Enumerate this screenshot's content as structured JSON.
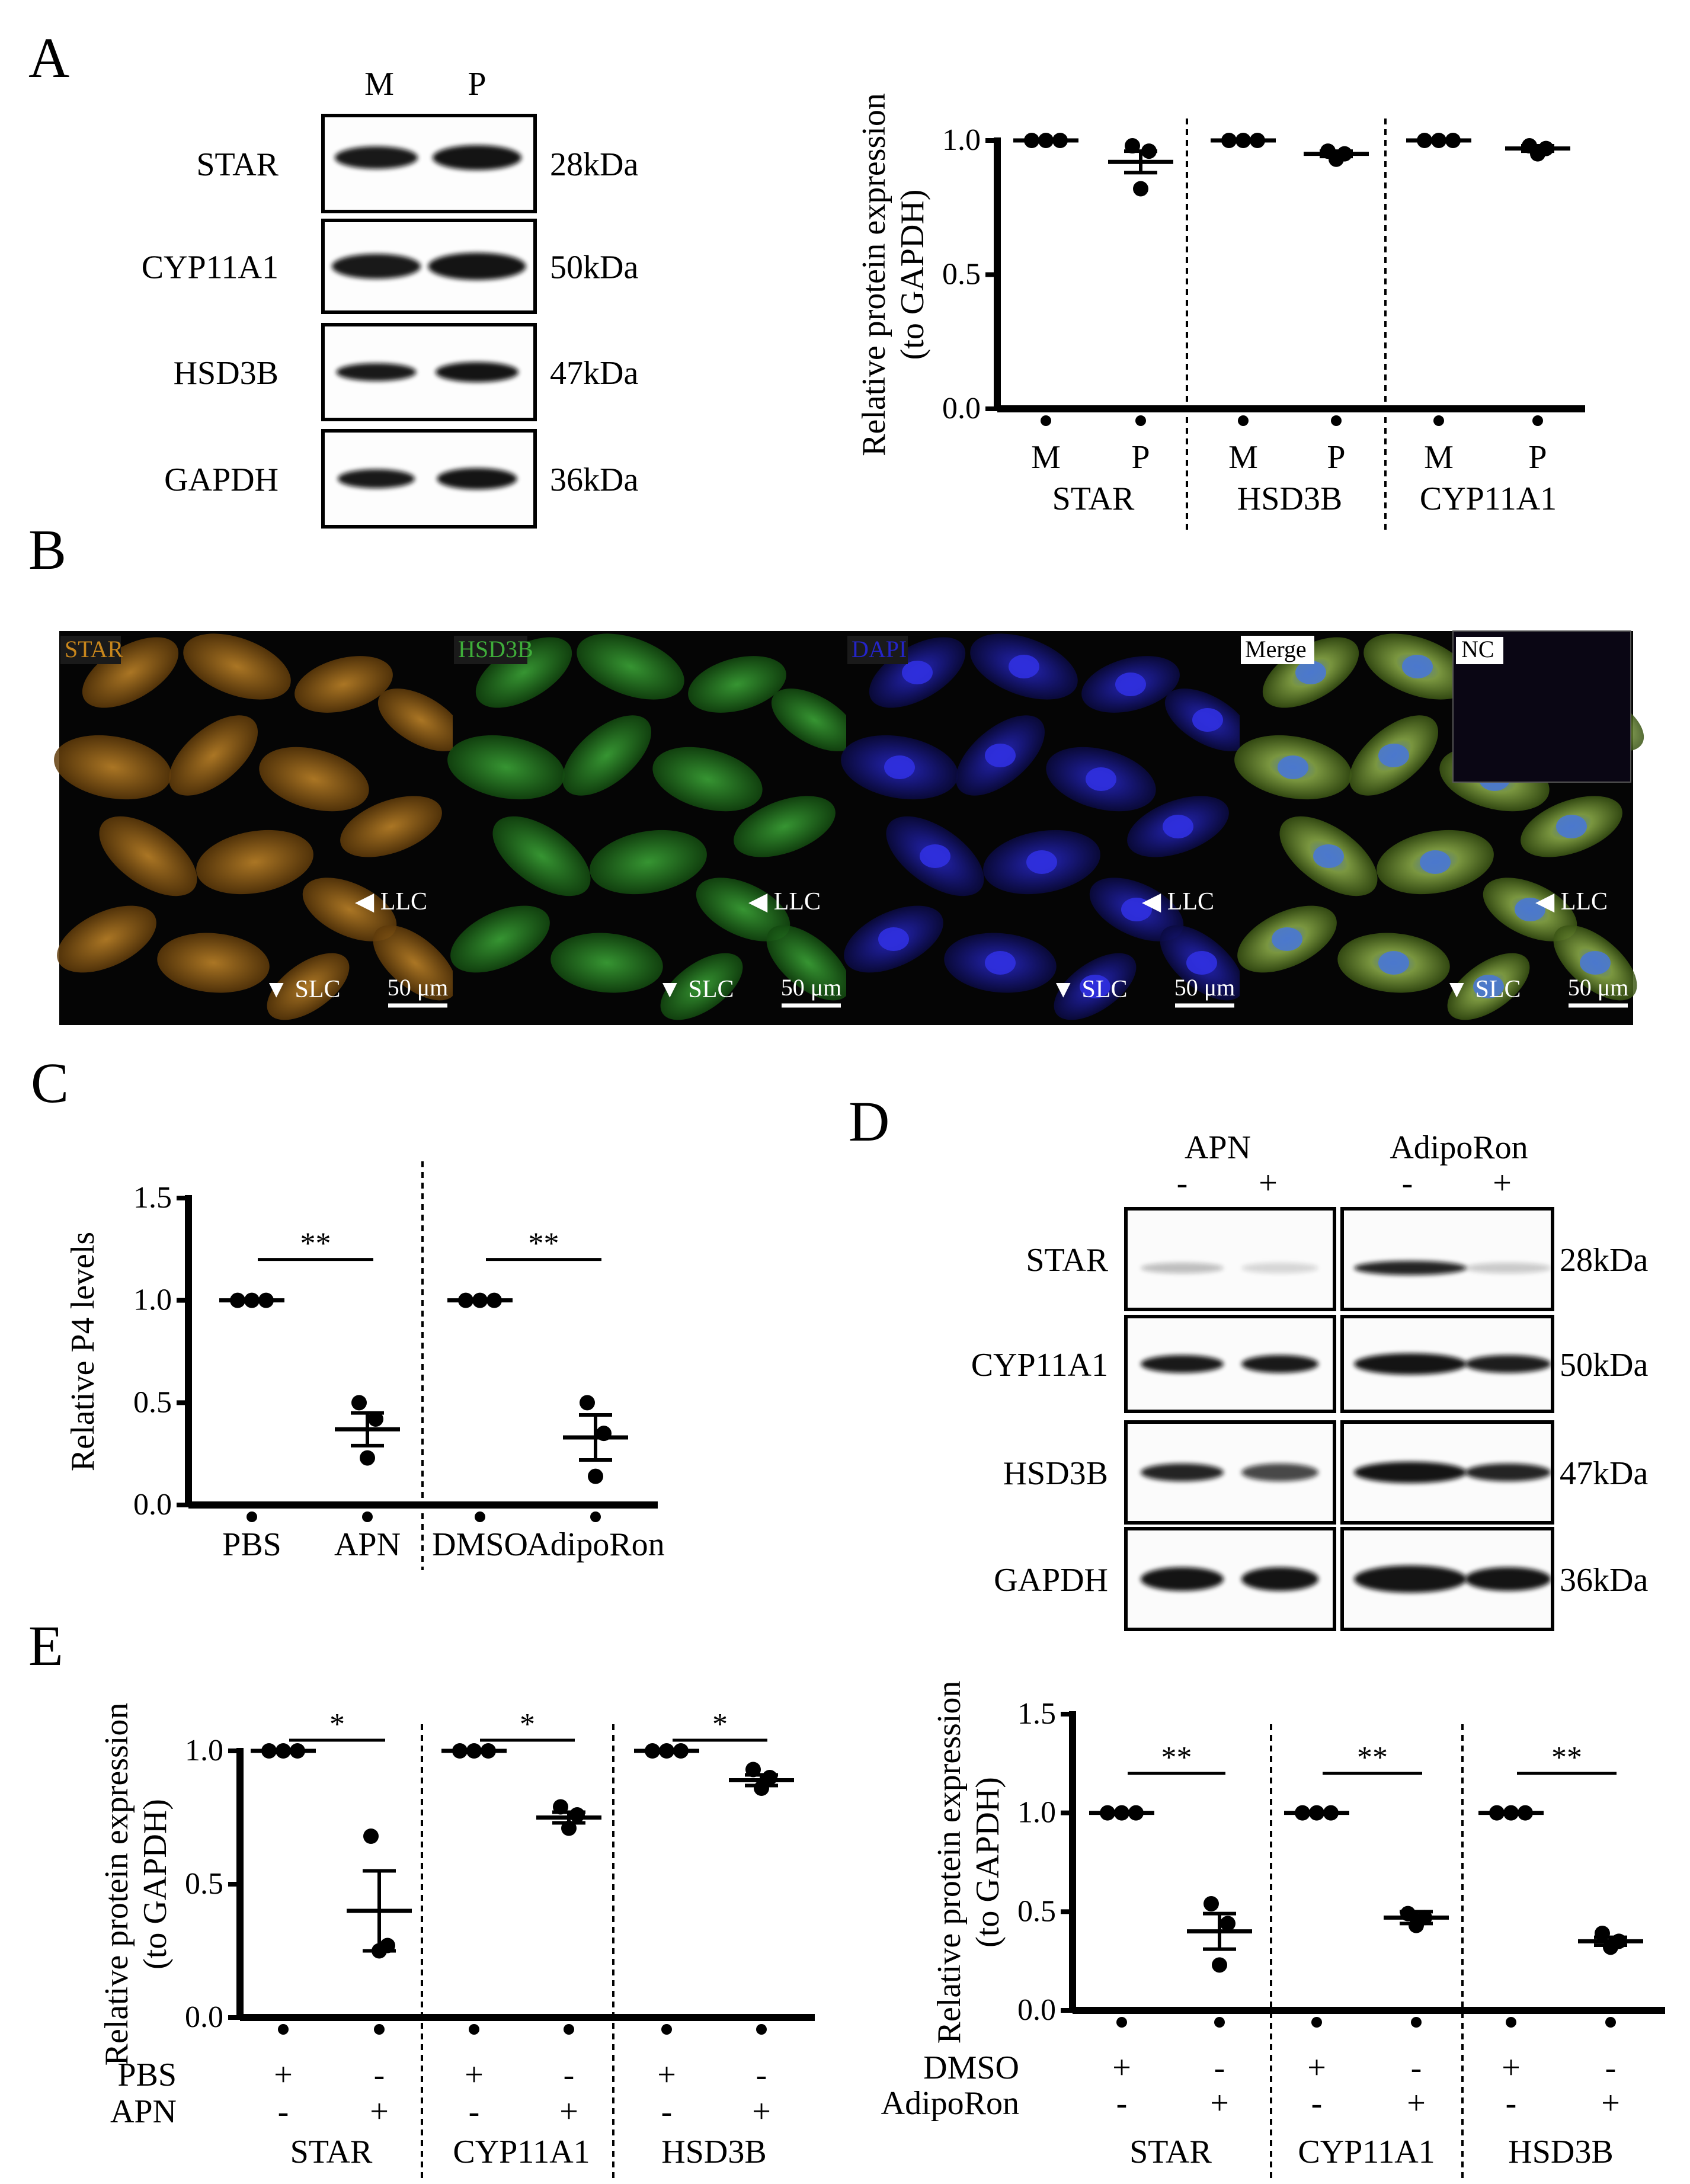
{
  "panels": {
    "A": {
      "letter": "A",
      "blot": {
        "lanes": [
          "M",
          "P"
        ],
        "rows": [
          {
            "protein": "STAR",
            "kda": "28kDa"
          },
          {
            "protein": "CYP11A1",
            "kda": "50kDa"
          },
          {
            "protein": "HSD3B",
            "kda": "47kDa"
          },
          {
            "protein": "GAPDH",
            "kda": "36kDa"
          }
        ]
      }
    },
    "B": {
      "letter": "B",
      "images": [
        {
          "channel": "STAR",
          "color": "#c8861c"
        },
        {
          "channel": "HSD3B",
          "color": "#3fae3a"
        },
        {
          "channel": "DAPI",
          "color": "#2424c8"
        },
        {
          "channel": "Merge",
          "color": "#7fa83a"
        }
      ],
      "inset_label": "NC",
      "arrow_labels": [
        "LLC",
        "SLC"
      ],
      "scale_bar": "50 μm"
    },
    "C": {
      "letter": "C"
    },
    "D": {
      "letter": "D",
      "blot": {
        "groups": [
          "APN",
          "AdipoRon"
        ],
        "lane_signs": [
          "-",
          "+",
          "-",
          "+"
        ],
        "rows": [
          {
            "protein": "STAR",
            "kda": "28kDa"
          },
          {
            "protein": "CYP11A1",
            "kda": "50kDa"
          },
          {
            "protein": "HSD3B",
            "kda": "47kDa"
          },
          {
            "protein": "GAPDH",
            "kda": "36kDa"
          }
        ]
      }
    },
    "E": {
      "letter": "E"
    }
  },
  "chart_data": [
    {
      "id": "A",
      "type": "scatter",
      "ylabel": [
        "Relative protein expression",
        "(to GAPDH)"
      ],
      "ylim": [
        0,
        1.0
      ],
      "yticks": [
        "0.0",
        "0.5",
        "1.0"
      ],
      "groups": [
        {
          "name": "STAR",
          "categories": [
            "M",
            "P"
          ],
          "mean": [
            1.0,
            0.92
          ],
          "sem": [
            0,
            0.04
          ],
          "points": [
            [
              1.0,
              1.0,
              1.0
            ],
            [
              0.98,
              0.96,
              0.82
            ]
          ]
        },
        {
          "name": "HSD3B",
          "categories": [
            "M",
            "P"
          ],
          "mean": [
            1.0,
            0.95
          ],
          "sem": [
            0,
            0.01
          ],
          "points": [
            [
              1.0,
              1.0,
              1.0
            ],
            [
              0.96,
              0.95,
              0.93
            ]
          ]
        },
        {
          "name": "CYP11A1",
          "categories": [
            "M",
            "P"
          ],
          "mean": [
            1.0,
            0.97
          ],
          "sem": [
            0,
            0.01
          ],
          "points": [
            [
              1.0,
              1.0,
              1.0
            ],
            [
              0.98,
              0.97,
              0.95
            ]
          ]
        }
      ]
    },
    {
      "id": "C",
      "type": "scatter",
      "ylabel": [
        "Relative P4 levels"
      ],
      "ylim": [
        0,
        1.5
      ],
      "yticks": [
        "0.0",
        "0.5",
        "1.0",
        "1.5"
      ],
      "groups": [
        {
          "name": "",
          "categories": [
            "PBS",
            "APN"
          ],
          "mean": [
            1.0,
            0.37
          ],
          "sem": [
            0,
            0.08
          ],
          "points": [
            [
              1.0,
              1.0,
              1.0
            ],
            [
              0.5,
              0.42,
              0.23
            ]
          ],
          "significance": "**"
        },
        {
          "name": "",
          "categories": [
            "DMSO",
            "AdipoRon"
          ],
          "mean": [
            1.0,
            0.33
          ],
          "sem": [
            0,
            0.11
          ],
          "points": [
            [
              1.0,
              1.0,
              1.0
            ],
            [
              0.5,
              0.35,
              0.14
            ]
          ],
          "significance": "**"
        }
      ]
    },
    {
      "id": "E-left",
      "type": "scatter",
      "ylabel": [
        "Relative protein expression",
        "(to GAPDH)"
      ],
      "ylim": [
        0,
        1.0
      ],
      "yticks": [
        "0.0",
        "0.5",
        "1.0"
      ],
      "row_labels": [
        "PBS",
        "APN"
      ],
      "signs": [
        [
          "+",
          "-"
        ],
        [
          "-",
          "+"
        ]
      ],
      "groups": [
        {
          "name": "STAR",
          "mean": [
            1.0,
            0.4
          ],
          "sem": [
            0,
            0.15
          ],
          "points": [
            [
              1.0,
              1.0,
              1.0
            ],
            [
              0.68,
              0.27,
              0.25
            ]
          ],
          "significance": "*"
        },
        {
          "name": "CYP11A1",
          "mean": [
            1.0,
            0.75
          ],
          "sem": [
            0,
            0.02
          ],
          "points": [
            [
              1.0,
              1.0,
              1.0
            ],
            [
              0.79,
              0.76,
              0.71
            ]
          ],
          "significance": "*"
        },
        {
          "name": "HSD3B",
          "mean": [
            1.0,
            0.89
          ],
          "sem": [
            0,
            0.02
          ],
          "points": [
            [
              1.0,
              1.0,
              1.0
            ],
            [
              0.93,
              0.9,
              0.86
            ]
          ],
          "significance": "*"
        }
      ]
    },
    {
      "id": "E-right",
      "type": "scatter",
      "ylabel": [
        "Relative protein expression",
        "(to GAPDH)"
      ],
      "ylim": [
        0,
        1.5
      ],
      "yticks": [
        "0.0",
        "0.5",
        "1.0",
        "1.5"
      ],
      "row_labels": [
        "DMSO",
        "AdipoRon"
      ],
      "signs": [
        [
          "+",
          "-"
        ],
        [
          "-",
          "+"
        ]
      ],
      "groups": [
        {
          "name": "STAR",
          "mean": [
            1.0,
            0.4
          ],
          "sem": [
            0,
            0.09
          ],
          "points": [
            [
              1.0,
              1.0,
              1.0
            ],
            [
              0.54,
              0.44,
              0.23
            ]
          ],
          "significance": "**"
        },
        {
          "name": "CYP11A1",
          "mean": [
            1.0,
            0.47
          ],
          "sem": [
            0,
            0.03
          ],
          "points": [
            [
              1.0,
              1.0,
              1.0
            ],
            [
              0.49,
              0.47,
              0.43
            ]
          ],
          "significance": "**"
        },
        {
          "name": "HSD3B",
          "mean": [
            1.0,
            0.35
          ],
          "sem": [
            0,
            0.02
          ],
          "points": [
            [
              1.0,
              1.0,
              1.0
            ],
            [
              0.39,
              0.35,
              0.32
            ]
          ],
          "significance": "**"
        }
      ]
    }
  ]
}
